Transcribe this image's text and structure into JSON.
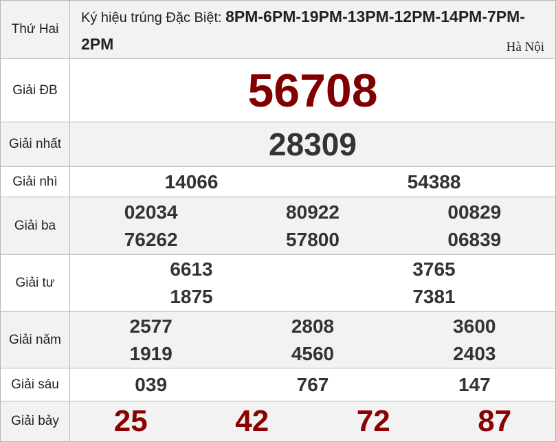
{
  "header": {
    "day": "Thứ Hai",
    "codes_label": "Ký hiệu trúng Đặc Biệt: ",
    "codes": "8PM-6PM-19PM-13PM-12PM-14PM-7PM-2PM",
    "region": "Hà Nội"
  },
  "colors": {
    "special": "#800000",
    "seventh": "#8b0000",
    "text": "#333333",
    "row_alt": "#f2f2f2"
  },
  "prizes": {
    "db": {
      "label": "Giải ĐB",
      "numbers": [
        "56708"
      ]
    },
    "g1": {
      "label": "Giải nhất",
      "numbers": [
        "28309"
      ]
    },
    "g2": {
      "label": "Giải nhì",
      "numbers": [
        "14066",
        "54388"
      ]
    },
    "g3": {
      "label": "Giải ba",
      "numbers": [
        "02034",
        "80922",
        "00829",
        "76262",
        "57800",
        "06839"
      ]
    },
    "g4": {
      "label": "Giải tư",
      "numbers": [
        "6613",
        "3765",
        "1875",
        "7381"
      ]
    },
    "g5": {
      "label": "Giải năm",
      "numbers": [
        "2577",
        "2808",
        "3600",
        "1919",
        "4560",
        "2403"
      ]
    },
    "g6": {
      "label": "Giải sáu",
      "numbers": [
        "039",
        "767",
        "147"
      ]
    },
    "g7": {
      "label": "Giải bảy",
      "numbers": [
        "25",
        "42",
        "72",
        "87"
      ]
    }
  }
}
